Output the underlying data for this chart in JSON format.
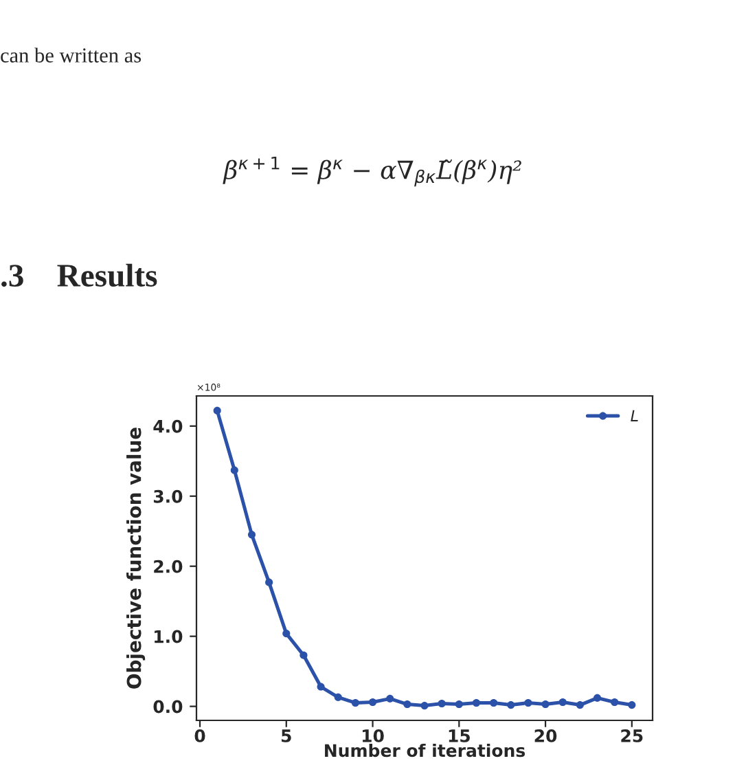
{
  "chart_data": {
    "type": "line",
    "xlabel": "Number of iterations",
    "ylabel": "Objective function value",
    "annotations": [
      "can be written as",
      "β$^{κ+1}$ = β$^{κ}$ − α∇$_{βκ}$L̃(β$^{κ}$)η²",
      ".3    Results",
      "×10⁸"
    ],
    "x": [
      1,
      2,
      3,
      4,
      5,
      6,
      7,
      8,
      9,
      10,
      11,
      12,
      13,
      14,
      15,
      16,
      17,
      18,
      19,
      20,
      21,
      22,
      23,
      24,
      25
    ],
    "series": [
      {
        "name": "L",
        "color": "#2b52a8",
        "values": [
          4.22,
          3.37,
          2.45,
          1.77,
          1.04,
          0.73,
          0.28,
          0.13,
          0.05,
          0.06,
          0.11,
          0.03,
          0.01,
          0.04,
          0.03,
          0.05,
          0.05,
          0.02,
          0.05,
          0.03,
          0.06,
          0.02,
          0.12,
          0.06,
          0.02
        ]
      }
    ],
    "xlim": [
      -0.2,
      26.2
    ],
    "ylim": [
      -0.2,
      4.43
    ],
    "xticks": [
      0,
      5,
      10,
      15,
      20,
      25
    ],
    "yticks": [
      {
        "value": 0,
        "label": "0.0"
      },
      {
        "value": 1,
        "label": "1.0"
      },
      {
        "value": 2,
        "label": "2.0"
      },
      {
        "value": 3,
        "label": "3.0"
      },
      {
        "value": 4,
        "label": "4.0"
      }
    ],
    "marker": "circle",
    "line_style": "solid",
    "legend": "top right",
    "grid": false
  }
}
